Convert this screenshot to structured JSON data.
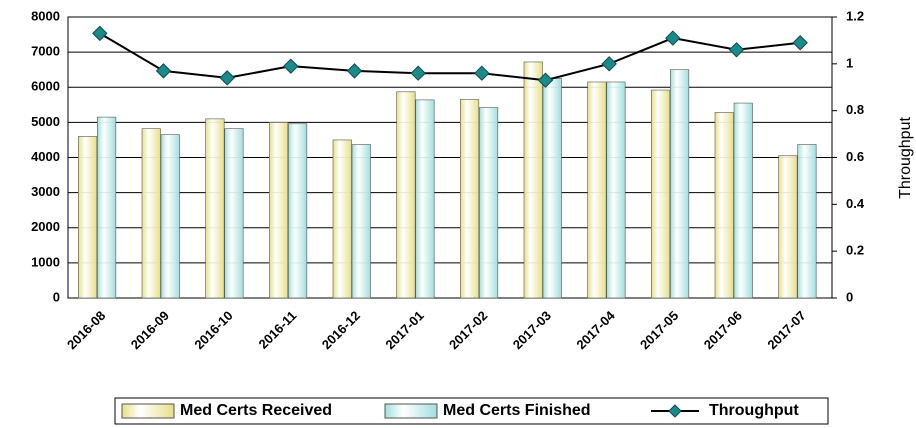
{
  "chart_data": {
    "type": "bar",
    "categories": [
      "2016-08",
      "2016-09",
      "2016-10",
      "2016-11",
      "2016-12",
      "2017-01",
      "2017-02",
      "2017-03",
      "2017-04",
      "2017-05",
      "2017-06",
      "2017-07"
    ],
    "series": [
      {
        "name": "Med Certs Received",
        "color": "#e6df85",
        "values": [
          4600,
          4820,
          5100,
          5000,
          4500,
          5870,
          5650,
          6720,
          6150,
          5920,
          5280,
          4050
        ]
      },
      {
        "name": "Med Certs Finished",
        "color": "#9fdede",
        "values": [
          5150,
          4650,
          4820,
          4960,
          4370,
          5640,
          5420,
          6250,
          6150,
          6500,
          5550,
          4370
        ]
      },
      {
        "name": "Throughput",
        "type": "line",
        "axis": "y2",
        "color": "#1a8a8a",
        "values": [
          1.13,
          0.97,
          0.94,
          0.99,
          0.97,
          0.96,
          0.96,
          0.93,
          1.0,
          1.11,
          1.06,
          1.09
        ]
      }
    ],
    "ylim": [
      0,
      8000
    ],
    "yticks": [
      0,
      1000,
      2000,
      3000,
      4000,
      5000,
      6000,
      7000,
      8000
    ],
    "y2lim": [
      0,
      1.2
    ],
    "y2ticks": [
      0,
      0.2,
      0.4,
      0.6,
      0.8,
      1,
      1.2
    ],
    "y2label": "Throughput",
    "grid": true,
    "legend": "bottom"
  }
}
